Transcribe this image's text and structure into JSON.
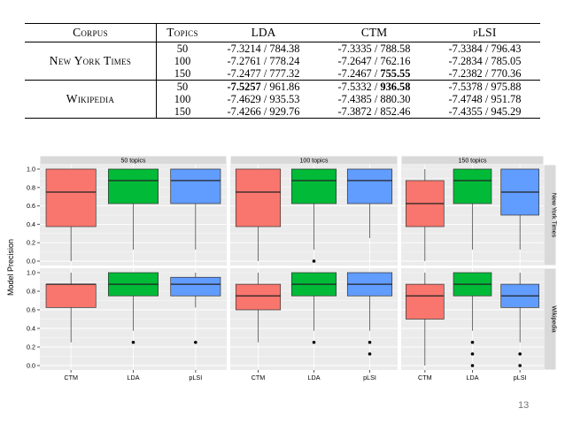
{
  "table": {
    "headers": {
      "corpus": "Corpus",
      "topics": "Topics",
      "lda": "LDA",
      "ctm": "CTM",
      "plsi": "pLSI"
    },
    "groups": [
      {
        "corpus": "New York Times",
        "rows": [
          {
            "topics": "50",
            "lda": "-7.3214 / 784.38",
            "ctm": "-7.3335 / 788.58",
            "plsi": "-7.3384 / 796.43"
          },
          {
            "topics": "100",
            "lda": "-7.2761 / 778.24",
            "ctm": "-7.2647 / 762.16",
            "plsi": "-7.2834 / 785.05"
          },
          {
            "topics": "150",
            "lda": "-7.2477 / 777.32",
            "ctm": "-7.2467 / 755.55",
            "plsi": "-7.2382 / 770.36"
          }
        ]
      },
      {
        "corpus": "Wikipedia",
        "rows": [
          {
            "topics": "50",
            "lda": "-7.5257 / 961.86",
            "ctm": "-7.5332 / 936.58",
            "plsi": "-7.5378 / 975.88"
          },
          {
            "topics": "100",
            "lda": "-7.4629 / 935.53",
            "ctm": "-7.4385 / 880.30",
            "plsi": "-7.4748 / 951.78"
          },
          {
            "topics": "150",
            "lda": "-7.4266 / 929.76",
            "ctm": "-7.3872 / 852.46",
            "plsi": "-7.4355 / 945.29"
          }
        ]
      }
    ]
  },
  "chart_data": {
    "type": "boxplot",
    "ylabel": "Model Precision",
    "ylim": [
      0,
      1.0
    ],
    "yticks": [
      "0.0",
      "0.2",
      "0.4",
      "0.6",
      "0.8",
      "1.0"
    ],
    "categories": [
      "CTM",
      "LDA",
      "pLSI"
    ],
    "column_facets": [
      "50 topics",
      "100 topics",
      "150 topics"
    ],
    "row_facets": [
      "New York Times",
      "Wikipedia"
    ],
    "colors": {
      "CTM": "#f8766d",
      "LDA": "#00ba38",
      "pLSI": "#619cff"
    },
    "grid": true,
    "panels": [
      {
        "row": 0,
        "col": 0,
        "boxes": [
          {
            "cat": "CTM",
            "min": 0.0,
            "q1": 0.375,
            "median": 0.75,
            "q3": 1.0,
            "max": 1.0,
            "outliers": []
          },
          {
            "cat": "LDA",
            "min": 0.125,
            "q1": 0.625,
            "median": 0.875,
            "q3": 1.0,
            "max": 1.0,
            "outliers": []
          },
          {
            "cat": "pLSI",
            "min": 0.125,
            "q1": 0.625,
            "median": 0.875,
            "q3": 1.0,
            "max": 1.0,
            "outliers": []
          }
        ]
      },
      {
        "row": 0,
        "col": 1,
        "boxes": [
          {
            "cat": "CTM",
            "min": 0.0,
            "q1": 0.375,
            "median": 0.75,
            "q3": 1.0,
            "max": 1.0,
            "outliers": []
          },
          {
            "cat": "LDA",
            "min": 0.125,
            "q1": 0.625,
            "median": 0.875,
            "q3": 1.0,
            "max": 1.0,
            "outliers": [
              0.0
            ]
          },
          {
            "cat": "pLSI",
            "min": 0.25,
            "q1": 0.625,
            "median": 0.875,
            "q3": 1.0,
            "max": 1.0,
            "outliers": []
          }
        ]
      },
      {
        "row": 0,
        "col": 2,
        "boxes": [
          {
            "cat": "CTM",
            "min": 0.0,
            "q1": 0.375,
            "median": 0.625,
            "q3": 0.875,
            "max": 1.0,
            "outliers": []
          },
          {
            "cat": "LDA",
            "min": 0.125,
            "q1": 0.625,
            "median": 0.875,
            "q3": 1.0,
            "max": 1.0,
            "outliers": []
          },
          {
            "cat": "pLSI",
            "min": 0.125,
            "q1": 0.5,
            "median": 0.75,
            "q3": 1.0,
            "max": 1.0,
            "outliers": []
          }
        ]
      },
      {
        "row": 1,
        "col": 0,
        "boxes": [
          {
            "cat": "CTM",
            "min": 0.25,
            "q1": 0.625,
            "median": 0.875,
            "q3": 0.875,
            "max": 1.0,
            "outliers": []
          },
          {
            "cat": "LDA",
            "min": 0.375,
            "q1": 0.75,
            "median": 0.875,
            "q3": 1.0,
            "max": 1.0,
            "outliers": [
              0.25
            ]
          },
          {
            "cat": "pLSI",
            "min": 0.625,
            "q1": 0.75,
            "median": 0.875,
            "q3": 0.95,
            "max": 1.0,
            "outliers": [
              0.25
            ]
          }
        ]
      },
      {
        "row": 1,
        "col": 1,
        "boxes": [
          {
            "cat": "CTM",
            "min": 0.25,
            "q1": 0.6,
            "median": 0.75,
            "q3": 0.875,
            "max": 1.0,
            "outliers": []
          },
          {
            "cat": "LDA",
            "min": 0.375,
            "q1": 0.75,
            "median": 0.875,
            "q3": 1.0,
            "max": 1.0,
            "outliers": [
              0.25
            ]
          },
          {
            "cat": "pLSI",
            "min": 0.375,
            "q1": 0.75,
            "median": 0.875,
            "q3": 1.0,
            "max": 1.0,
            "outliers": [
              0.25,
              0.125
            ]
          }
        ]
      },
      {
        "row": 1,
        "col": 2,
        "boxes": [
          {
            "cat": "CTM",
            "min": 0.0,
            "q1": 0.5,
            "median": 0.75,
            "q3": 0.875,
            "max": 1.0,
            "outliers": []
          },
          {
            "cat": "LDA",
            "min": 0.375,
            "q1": 0.75,
            "median": 0.875,
            "q3": 1.0,
            "max": 1.0,
            "outliers": [
              0.25,
              0.125,
              0.0
            ]
          },
          {
            "cat": "pLSI",
            "min": 0.25,
            "q1": 0.625,
            "median": 0.75,
            "q3": 0.875,
            "max": 1.0,
            "outliers": [
              0.125,
              0.0
            ]
          }
        ]
      }
    ]
  },
  "page_number": "13"
}
